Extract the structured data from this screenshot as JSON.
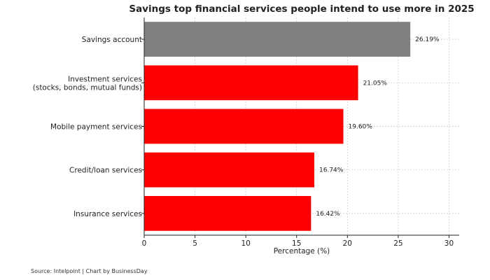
{
  "chart_data": {
    "type": "bar",
    "orientation": "horizontal",
    "title": "Savings top financial services people intend to use more in 2025",
    "xlabel": "Percentage (%)",
    "ylabel": "",
    "xlim": [
      0,
      31
    ],
    "xticks": [
      0,
      5,
      10,
      15,
      20,
      25,
      30
    ],
    "grid": true,
    "categories": [
      [
        "Savings account"
      ],
      [
        "Investment services",
        "(stocks, bonds, mutual funds)"
      ],
      [
        "Mobile payment services"
      ],
      [
        "Credit/loan services"
      ],
      [
        "Insurance services"
      ]
    ],
    "values": [
      26.19,
      21.05,
      19.6,
      16.74,
      16.42
    ],
    "value_labels": [
      "26.19%",
      "21.05%",
      "19.60%",
      "16.74%",
      "16.42%"
    ],
    "colors": [
      "#808080",
      "#ff0000",
      "#ff0000",
      "#ff0000",
      "#ff0000"
    ]
  },
  "source_note": "Source: Intelpoint | Chart by BusinessDay"
}
